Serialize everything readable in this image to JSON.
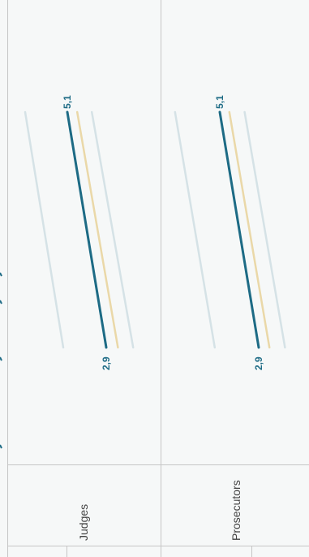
{
  "chart_data": {
    "type": "line",
    "orientation": "rotated",
    "panels": [
      {
        "label": "Judges",
        "highlight": {
          "start": 5.1,
          "end": 2.9,
          "start_label": "5,1",
          "end_label": "2,9"
        },
        "others": [
          {
            "start": 6.1,
            "end": 3.4
          },
          {
            "start": 4.9,
            "end": 3.0
          },
          {
            "start": 4.4,
            "end": 2.7
          }
        ]
      },
      {
        "label": "Prosecutors",
        "highlight": {
          "start": 5.1,
          "end": 2.9,
          "start_label": "5,1",
          "end_label": "2,9"
        },
        "others": [
          {
            "start": 5.3,
            "end": 3.1
          },
          {
            "start": 4.8,
            "end": 2.7
          },
          {
            "start": 4.5,
            "end": 2.5
          }
        ]
      }
    ],
    "colors": {
      "highlight": "#1d6b85",
      "comparison": "#ead8a8",
      "other": "#d5e2e6",
      "divider": "#c6c6c6",
      "background": "#f6f8f8"
    }
  }
}
